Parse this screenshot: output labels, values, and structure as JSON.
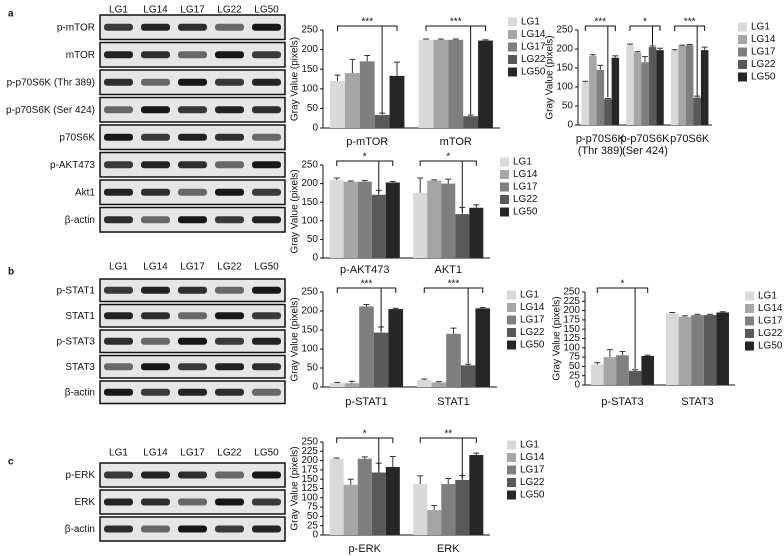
{
  "panels": [
    {
      "letter": "a",
      "lanes": [
        "LG1",
        "LG14",
        "LG17",
        "LG22",
        "LG50"
      ],
      "rows": [
        "p-mTOR",
        "mTOR",
        "p-p70S6K (Thr 389)",
        "p-p70S6K (Ser 424)",
        "p70S6K",
        "p-AKT473",
        "Akt1",
        "β-actin"
      ]
    },
    {
      "letter": "b",
      "lanes": [
        "LG1",
        "LG14",
        "LG17",
        "LG22",
        "LG50"
      ],
      "rows": [
        "p-STAT1",
        "STAT1",
        "p-STAT3",
        "STAT3",
        "β-actin"
      ]
    },
    {
      "letter": "c",
      "lanes": [
        "LG1",
        "LG14",
        "LG17",
        "LG22",
        "LG50"
      ],
      "rows": [
        "p-ERK",
        "ERK",
        "β-actin"
      ]
    }
  ],
  "chart_data": [
    {
      "type": "bar",
      "y_label": "Gray Value (pixels)",
      "categories": [
        "p-mTOR",
        "mTOR"
      ],
      "significance": [
        "***",
        "***"
      ],
      "ylim": [
        0,
        250
      ],
      "yticks": [
        0,
        50,
        100,
        150,
        200,
        250
      ],
      "series": [
        {
          "name": "LG1",
          "color": "#d9d9d9",
          "values": [
            120,
            225
          ],
          "errors": [
            15,
            2
          ]
        },
        {
          "name": "LG14",
          "color": "#a6a6a6",
          "values": [
            140,
            225
          ],
          "errors": [
            35,
            2
          ]
        },
        {
          "name": "LG17",
          "color": "#7f7f7f",
          "values": [
            170,
            225
          ],
          "errors": [
            15,
            2
          ]
        },
        {
          "name": "LG22",
          "color": "#595959",
          "values": [
            33,
            30
          ],
          "errors": [
            5,
            3
          ]
        },
        {
          "name": "LG50",
          "color": "#262626",
          "values": [
            133,
            223
          ],
          "errors": [
            35,
            2
          ]
        }
      ]
    },
    {
      "type": "bar",
      "y_label": "Gray Value (pixels)",
      "categories": [
        "p-p70S6K (Thr 389)",
        "p-p70S6K (Ser 424)",
        "p70S6K"
      ],
      "significance": [
        "***",
        "*",
        "***"
      ],
      "ylim": [
        0,
        250
      ],
      "yticks": [
        0,
        50,
        100,
        150,
        200,
        250
      ],
      "series": [
        {
          "name": "LG1",
          "color": "#d9d9d9",
          "values": [
            112,
            210,
            195
          ],
          "errors": [
            3,
            3,
            3
          ]
        },
        {
          "name": "LG14",
          "color": "#a6a6a6",
          "values": [
            182,
            190,
            208
          ],
          "errors": [
            3,
            3,
            2
          ]
        },
        {
          "name": "LG17",
          "color": "#7f7f7f",
          "values": [
            145,
            165,
            210
          ],
          "errors": [
            12,
            15,
            2
          ]
        },
        {
          "name": "LG22",
          "color": "#595959",
          "values": [
            68,
            205,
            72
          ],
          "errors": [
            2,
            3,
            4
          ]
        },
        {
          "name": "LG50",
          "color": "#262626",
          "values": [
            177,
            197,
            197
          ],
          "errors": [
            5,
            5,
            8
          ]
        }
      ]
    },
    {
      "type": "bar",
      "y_label": "Gray Value (pixels)",
      "categories": [
        "p-AKT473",
        "AKT1"
      ],
      "significance": [
        "*",
        "*"
      ],
      "ylim": [
        0,
        250
      ],
      "yticks": [
        0,
        50,
        100,
        150,
        200,
        250
      ],
      "series": [
        {
          "name": "LG1",
          "color": "#d9d9d9",
          "values": [
            210,
            175
          ],
          "errors": [
            5,
            40
          ]
        },
        {
          "name": "LG14",
          "color": "#a6a6a6",
          "values": [
            205,
            208
          ],
          "errors": [
            2,
            2
          ]
        },
        {
          "name": "LG17",
          "color": "#7f7f7f",
          "values": [
            205,
            200
          ],
          "errors": [
            3,
            12
          ]
        },
        {
          "name": "LG22",
          "color": "#595959",
          "values": [
            170,
            118
          ],
          "errors": [
            12,
            18
          ]
        },
        {
          "name": "LG50",
          "color": "#262626",
          "values": [
            203,
            135
          ],
          "errors": [
            3,
            8
          ]
        }
      ]
    },
    {
      "type": "bar",
      "y_label": "Gray Value (pixels)",
      "categories": [
        "p-STAT1",
        "STAT1"
      ],
      "significance": [
        "***",
        "***"
      ],
      "ylim": [
        0,
        250
      ],
      "yticks": [
        0,
        50,
        100,
        150,
        200,
        250
      ],
      "series": [
        {
          "name": "LG1",
          "color": "#d9d9d9",
          "values": [
            10,
            18
          ],
          "errors": [
            2,
            3
          ]
        },
        {
          "name": "LG14",
          "color": "#a6a6a6",
          "values": [
            10,
            12
          ],
          "errors": [
            5,
            2
          ]
        },
        {
          "name": "LG17",
          "color": "#7f7f7f",
          "values": [
            212,
            140
          ],
          "errors": [
            5,
            15
          ]
        },
        {
          "name": "LG22",
          "color": "#595959",
          "values": [
            143,
            57
          ],
          "errors": [
            15,
            3
          ]
        },
        {
          "name": "LG50",
          "color": "#262626",
          "values": [
            205,
            207
          ],
          "errors": [
            2,
            2
          ]
        }
      ]
    },
    {
      "type": "bar",
      "y_label": "Gray Value (pixels)",
      "categories": [
        "p-STAT3",
        "STAT3"
      ],
      "significance": [
        "*",
        null
      ],
      "ylim": [
        0,
        250
      ],
      "yticks": [
        0,
        25,
        50,
        75,
        100,
        125,
        150,
        175,
        200,
        225,
        250
      ],
      "series": [
        {
          "name": "LG1",
          "color": "#d9d9d9",
          "values": [
            55,
            193
          ],
          "errors": [
            5,
            2
          ]
        },
        {
          "name": "LG14",
          "color": "#a6a6a6",
          "values": [
            75,
            183
          ],
          "errors": [
            20,
            3
          ]
        },
        {
          "name": "LG17",
          "color": "#7f7f7f",
          "values": [
            80,
            188
          ],
          "errors": [
            10,
            2
          ]
        },
        {
          "name": "LG22",
          "color": "#595959",
          "values": [
            38,
            188
          ],
          "errors": [
            3,
            2
          ]
        },
        {
          "name": "LG50",
          "color": "#262626",
          "values": [
            78,
            195
          ],
          "errors": [
            2,
            2
          ]
        }
      ]
    },
    {
      "type": "bar",
      "y_label": "Gray Value (pixels)",
      "categories": [
        "p-ERK",
        "ERK"
      ],
      "significance": [
        "*",
        "**"
      ],
      "ylim": [
        0,
        250
      ],
      "yticks": [
        0,
        25,
        50,
        75,
        100,
        125,
        150,
        175,
        200,
        225,
        250
      ],
      "series": [
        {
          "name": "LG1",
          "color": "#d9d9d9",
          "values": [
            205,
            137
          ],
          "errors": [
            2,
            22
          ]
        },
        {
          "name": "LG14",
          "color": "#a6a6a6",
          "values": [
            135,
            67
          ],
          "errors": [
            15,
            12
          ]
        },
        {
          "name": "LG17",
          "color": "#7f7f7f",
          "values": [
            205,
            137
          ],
          "errors": [
            5,
            15
          ]
        },
        {
          "name": "LG22",
          "color": "#595959",
          "values": [
            168,
            148
          ],
          "errors": [
            25,
            12
          ]
        },
        {
          "name": "LG50",
          "color": "#262626",
          "values": [
            183,
            215
          ],
          "errors": [
            28,
            5
          ]
        }
      ]
    }
  ]
}
